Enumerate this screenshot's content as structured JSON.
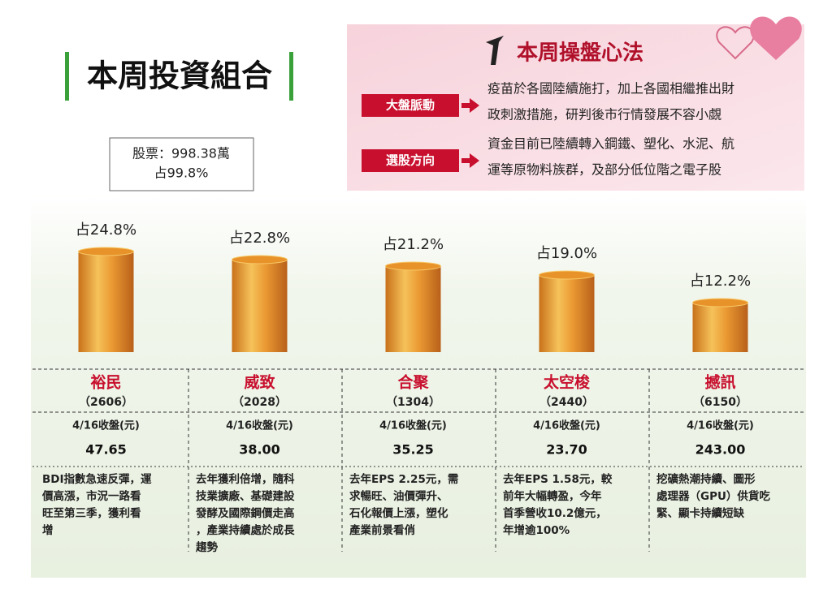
{
  "header": {
    "title": "本周投資組合",
    "summary": [
      "股票：998.38萬",
      "占99.8%"
    ]
  },
  "strategy": {
    "title": "本周操盤心法",
    "items": [
      {
        "label": "大盤脈動",
        "lines": [
          "疫苗於各國陸續施打，加上各國相繼推出財",
          "政刺激措施，研判後市行情發展不容小覷"
        ]
      },
      {
        "label": "選股方向",
        "lines": [
          "資金目前已陸續轉入鋼鐵、塑化、水泥、航",
          "運等原物料族群，及部分低位階之電子股"
        ]
      }
    ]
  },
  "chart_data": {
    "type": "bar",
    "categories": [
      "裕民",
      "威致",
      "合聚",
      "太空梭",
      "撼訊"
    ],
    "values": [
      24.8,
      22.8,
      21.2,
      19.0,
      12.2
    ],
    "value_labels": [
      "占24.8%",
      "占22.8%",
      "占21.2%",
      "占19.0%",
      "占12.2%"
    ],
    "color": "#e8922a"
  },
  "table": {
    "price_label": "4/16收盤(元)",
    "codes": [
      "（2606）",
      "（2028）",
      "（1304）",
      "（2440）",
      "（6150）"
    ],
    "prices": [
      "47.65",
      "38.00",
      "35.25",
      "23.70",
      "243.00"
    ],
    "notes": [
      [
        "BDI指數急速反彈，運",
        "價高漲，市況一路看",
        "旺至第三季，獲利看",
        "增"
      ],
      [
        "去年獲利倍增，隨科",
        "技業擴廠、基礎建設",
        "發酵及國際鋼價走高",
        "，產業持續處於成長",
        "趨勢"
      ],
      [
        "去年EPS 2.25元，需",
        "求暢旺、油價彈升、",
        "石化報價上漲，塑化",
        "產業前景看俏"
      ],
      [
        "去年EPS 1.58元，較",
        "前年大幅轉盈，今年",
        "首季營收10.2億元，",
        "年增逾100%"
      ],
      [
        "挖礦熱潮持續、圖形",
        "處理器（GPU）供貨吃",
        "緊、顯卡持續短缺"
      ]
    ]
  }
}
